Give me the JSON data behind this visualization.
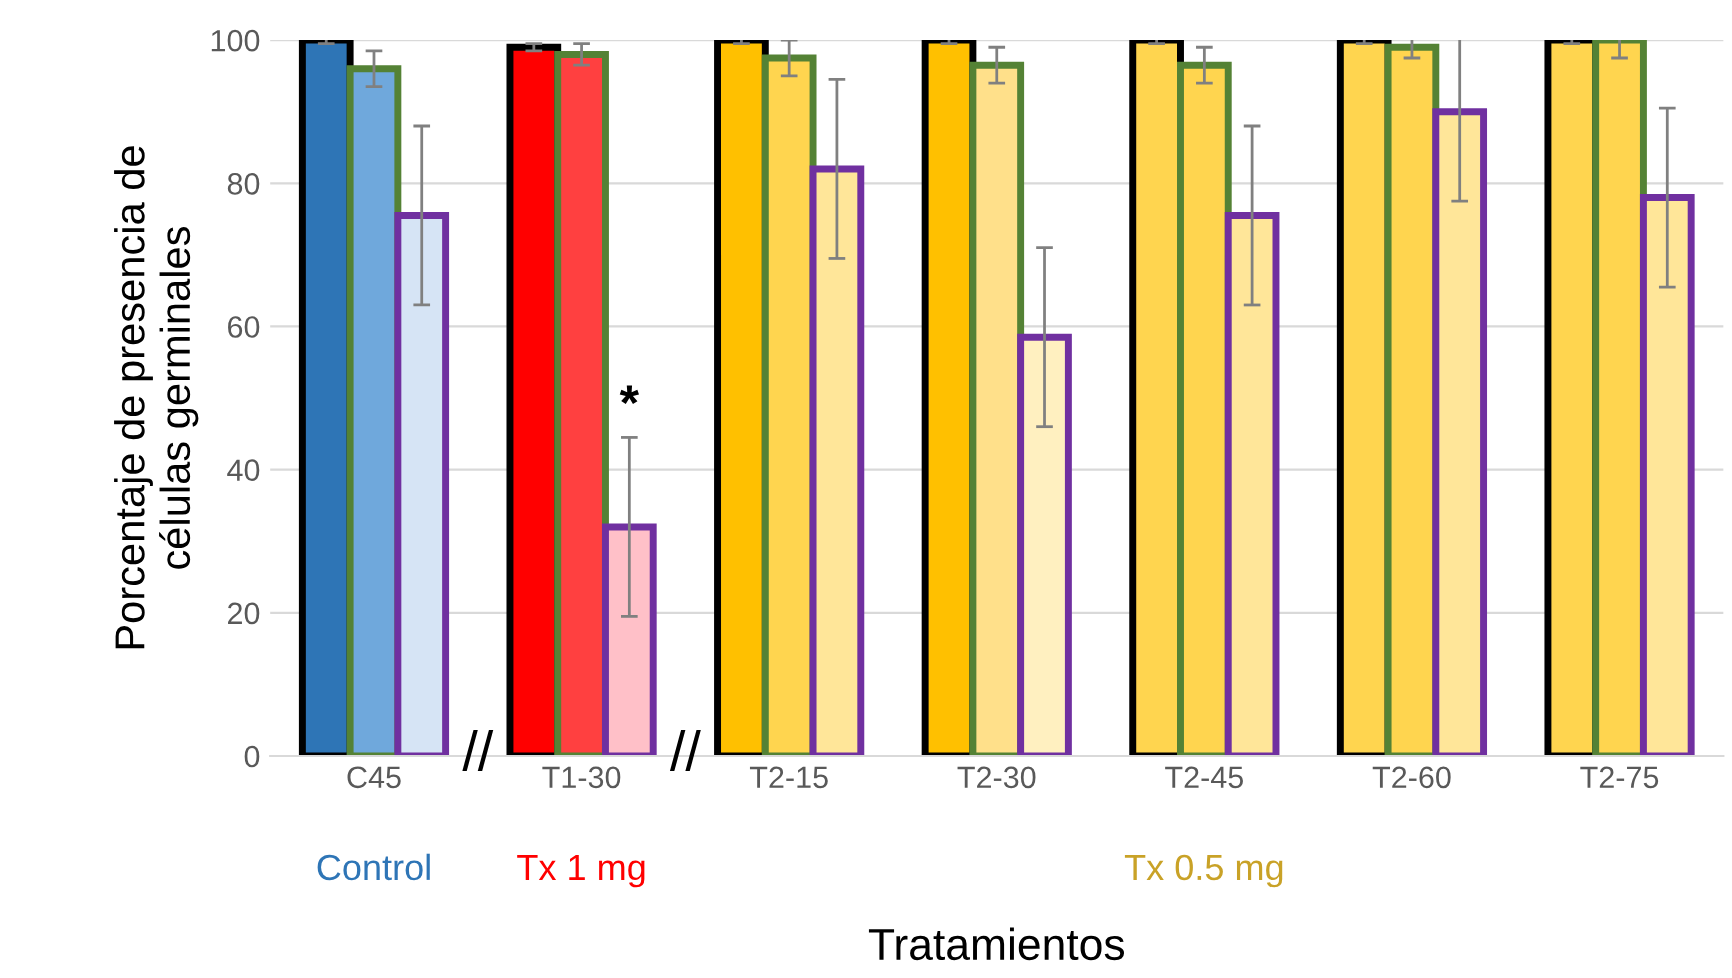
{
  "chart_data": {
    "type": "bar",
    "xlabel": "Tratamientos",
    "ylabel": "Porcentaje de presencia de\ncélulas germinales",
    "categories": [
      "C45",
      "T1-30",
      "T2-15",
      "T2-30",
      "T2-45",
      "T2-60",
      "T2-75"
    ],
    "series": [
      {
        "color": "#000000",
        "colors": [
          "#2e75b6",
          "#ff0000",
          "#ffc000",
          "#ffc000",
          "#ffd54f",
          "#ffd54f",
          "#ffd54f"
        ],
        "values": [
          100,
          99,
          100,
          100,
          100,
          100,
          100
        ],
        "errors": [
          0.5,
          0.5,
          0.5,
          0.5,
          0.5,
          0.5,
          0.5
        ]
      },
      {
        "color": "#548235",
        "colors": [
          "#6fa8dc",
          "#ff4040",
          "#ffd54f",
          "#ffe08a",
          "#ffd54f",
          "#ffd54f",
          "#ffd54f"
        ],
        "values": [
          96,
          98,
          97.5,
          96.5,
          96.5,
          99,
          100
        ],
        "errors": [
          2.5,
          1.5,
          2.5,
          2.5,
          2.5,
          1.5,
          2.5
        ]
      },
      {
        "color": "#7030a0",
        "colors": [
          "#d6e4f5",
          "#ffc0c8",
          "#ffe699",
          "#fff0c0",
          "#ffe699",
          "#ffe699",
          "#ffe699"
        ],
        "values": [
          75.5,
          32,
          82,
          58.5,
          75.5,
          90,
          78
        ],
        "errors": [
          12.5,
          12.5,
          12.5,
          12.5,
          12.5,
          12.5,
          12.5
        ]
      }
    ],
    "ylim": [
      0,
      100
    ],
    "yticks": [
      0,
      20,
      40,
      60,
      80,
      100
    ],
    "grid": "y",
    "annotations": [
      "*",
      "Control",
      "Tx 1 mg",
      "Tx 0.5 mg",
      "//",
      "//"
    ]
  }
}
